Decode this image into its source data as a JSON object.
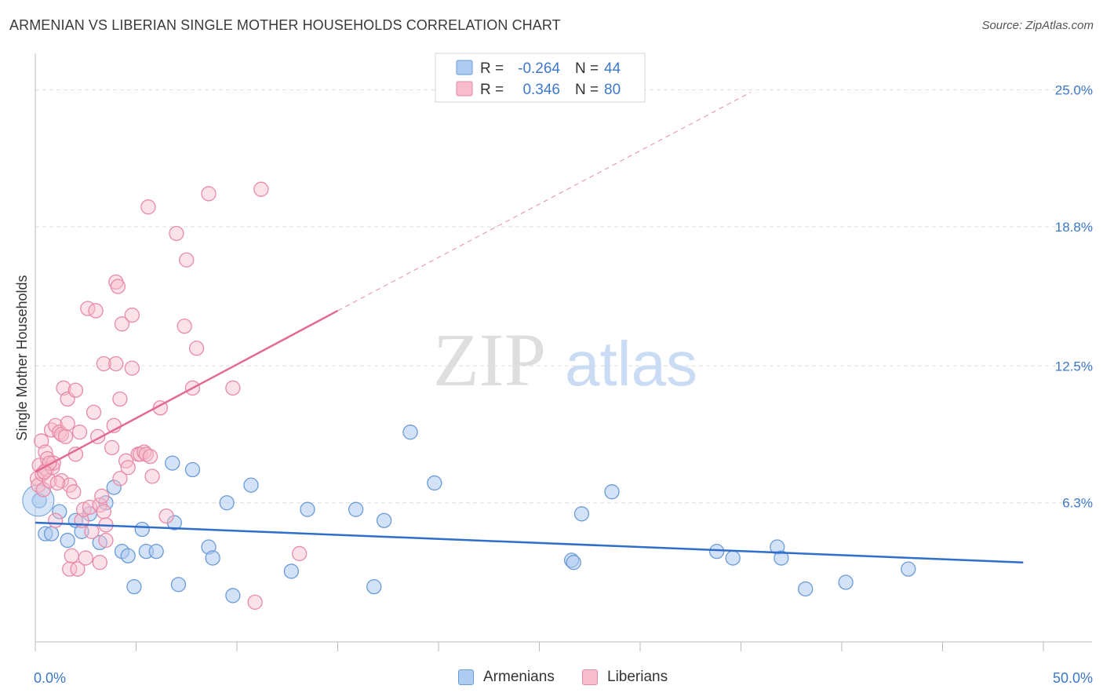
{
  "title": "ARMENIAN VS LIBERIAN SINGLE MOTHER HOUSEHOLDS CORRELATION CHART",
  "source": "Source: ZipAtlas.com",
  "watermark": {
    "zip": "ZIP",
    "atlas": "atlas"
  },
  "legend_top": [
    {
      "r_label": "R =",
      "r_value": "-0.264",
      "n_label": "N =",
      "n_value": "44"
    },
    {
      "r_label": "R =",
      "r_value": "0.346",
      "n_label": "N =",
      "n_value": "80"
    }
  ],
  "legend_bottom": [
    {
      "label": "Armenians"
    },
    {
      "label": "Liberians"
    }
  ],
  "colors": {
    "armenian_fill": "#aecbf0",
    "armenian_stroke": "#6a9bd8",
    "armenian_line": "#2f6fcb",
    "liberian_fill": "#f7bccd",
    "liberian_stroke": "#e88aa8",
    "liberian_line": "#e26a93",
    "tick_label": "#3d78c9",
    "grid": "#dddddd"
  },
  "chart_data": {
    "type": "scatter",
    "xlabel": "",
    "ylabel": "Single Mother Households",
    "xlim": [
      0,
      50
    ],
    "ylim": [
      0,
      26.3
    ],
    "x_tick_labels": [
      {
        "value": 0,
        "label": "0.0%"
      },
      {
        "value": 50,
        "label": "50.0%"
      }
    ],
    "y_tick_labels": [
      {
        "value": 6.3,
        "label": "6.3%"
      },
      {
        "value": 12.5,
        "label": "12.5%"
      },
      {
        "value": 18.8,
        "label": "18.8%"
      },
      {
        "value": 25.0,
        "label": "25.0%"
      }
    ],
    "grid": "horizontal dashed",
    "series": [
      {
        "name": "Armenians",
        "regression": {
          "x": [
            0,
            49
          ],
          "y": [
            5.4,
            3.6
          ]
        },
        "points": [
          [
            0.2,
            6.4
          ],
          [
            0.5,
            4.9
          ],
          [
            0.8,
            4.9
          ],
          [
            1.2,
            5.9
          ],
          [
            1.6,
            4.6
          ],
          [
            2.0,
            5.5
          ],
          [
            2.3,
            5.0
          ],
          [
            2.7,
            5.8
          ],
          [
            3.2,
            4.5
          ],
          [
            3.5,
            6.3
          ],
          [
            3.9,
            7.0
          ],
          [
            4.3,
            4.1
          ],
          [
            4.6,
            3.9
          ],
          [
            4.9,
            2.5
          ],
          [
            5.3,
            5.1
          ],
          [
            5.5,
            4.1
          ],
          [
            6.0,
            4.1
          ],
          [
            6.8,
            8.1
          ],
          [
            6.9,
            5.4
          ],
          [
            7.1,
            2.6
          ],
          [
            7.8,
            7.8
          ],
          [
            8.6,
            4.3
          ],
          [
            8.8,
            3.8
          ],
          [
            9.8,
            2.1
          ],
          [
            9.5,
            6.3
          ],
          [
            10.7,
            7.1
          ],
          [
            12.7,
            3.2
          ],
          [
            13.5,
            6.0
          ],
          [
            15.9,
            6.0
          ],
          [
            16.8,
            2.5
          ],
          [
            17.3,
            5.5
          ],
          [
            18.6,
            9.5
          ],
          [
            19.8,
            7.2
          ],
          [
            26.6,
            3.7
          ],
          [
            26.7,
            3.6
          ],
          [
            27.1,
            5.8
          ],
          [
            28.6,
            6.8
          ],
          [
            33.8,
            4.1
          ],
          [
            34.6,
            3.8
          ],
          [
            36.8,
            4.3
          ],
          [
            37.0,
            3.8
          ],
          [
            38.2,
            2.4
          ],
          [
            40.2,
            2.7
          ],
          [
            43.3,
            3.3
          ]
        ]
      },
      {
        "name": "Liberians",
        "regression": {
          "x": [
            0,
            15
          ],
          "y": [
            7.7,
            15.0
          ]
        },
        "regression_extended": {
          "x": [
            15,
            35.5
          ],
          "y": [
            15.0,
            24.9
          ]
        },
        "points": [
          [
            0.1,
            7.4
          ],
          [
            0.15,
            7.1
          ],
          [
            0.2,
            8.0
          ],
          [
            0.3,
            9.1
          ],
          [
            0.35,
            7.6
          ],
          [
            0.4,
            6.9
          ],
          [
            0.5,
            8.6
          ],
          [
            0.55,
            7.8
          ],
          [
            0.6,
            8.3
          ],
          [
            0.7,
            7.3
          ],
          [
            0.8,
            9.6
          ],
          [
            0.85,
            7.9
          ],
          [
            0.9,
            8.1
          ],
          [
            1.0,
            9.8
          ],
          [
            1.0,
            5.5
          ],
          [
            1.2,
            9.5
          ],
          [
            1.3,
            9.4
          ],
          [
            1.3,
            7.3
          ],
          [
            1.4,
            11.5
          ],
          [
            1.5,
            9.3
          ],
          [
            1.6,
            9.9
          ],
          [
            1.6,
            11.0
          ],
          [
            1.7,
            7.1
          ],
          [
            1.7,
            3.3
          ],
          [
            1.8,
            3.9
          ],
          [
            1.9,
            6.8
          ],
          [
            2.0,
            8.5
          ],
          [
            2.0,
            11.4
          ],
          [
            2.1,
            3.3
          ],
          [
            2.2,
            9.5
          ],
          [
            2.3,
            5.5
          ],
          [
            2.4,
            6.0
          ],
          [
            2.5,
            3.8
          ],
          [
            2.6,
            15.1
          ],
          [
            2.7,
            6.1
          ],
          [
            2.8,
            5.0
          ],
          [
            2.9,
            10.4
          ],
          [
            3.0,
            15.0
          ],
          [
            3.1,
            9.3
          ],
          [
            3.2,
            6.2
          ],
          [
            3.2,
            3.6
          ],
          [
            3.3,
            6.6
          ],
          [
            3.4,
            5.9
          ],
          [
            3.5,
            5.3
          ],
          [
            3.5,
            4.6
          ],
          [
            3.4,
            12.6
          ],
          [
            3.8,
            8.8
          ],
          [
            3.9,
            9.8
          ],
          [
            4.0,
            12.6
          ],
          [
            4.2,
            7.4
          ],
          [
            4.0,
            16.3
          ],
          [
            4.1,
            16.1
          ],
          [
            4.2,
            11.0
          ],
          [
            4.3,
            14.4
          ],
          [
            4.5,
            8.2
          ],
          [
            4.6,
            7.9
          ],
          [
            4.8,
            14.8
          ],
          [
            4.8,
            12.4
          ],
          [
            5.1,
            8.5
          ],
          [
            5.2,
            8.5
          ],
          [
            5.4,
            8.6
          ],
          [
            5.5,
            8.5
          ],
          [
            5.6,
            19.7
          ],
          [
            5.7,
            8.4
          ],
          [
            5.8,
            7.5
          ],
          [
            6.2,
            10.6
          ],
          [
            6.5,
            5.7
          ],
          [
            7.0,
            18.5
          ],
          [
            7.4,
            14.3
          ],
          [
            7.5,
            17.3
          ],
          [
            7.8,
            11.5
          ],
          [
            8.0,
            13.3
          ],
          [
            8.6,
            20.3
          ],
          [
            9.8,
            11.5
          ],
          [
            10.9,
            1.8
          ],
          [
            13.1,
            4.0
          ],
          [
            11.2,
            20.5
          ],
          [
            1.1,
            7.2
          ],
          [
            0.7,
            8.1
          ],
          [
            0.45,
            7.7
          ]
        ]
      }
    ]
  }
}
